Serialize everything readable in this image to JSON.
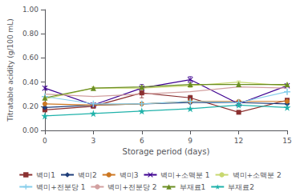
{
  "chart_data": {
    "type": "line",
    "xlabel": "Storage period (days)",
    "ylabel": "Titratable acidity (g/100 mL)",
    "x": [
      0,
      3,
      6,
      9,
      12,
      15
    ],
    "xlim": [
      0,
      15
    ],
    "xticks": [
      0,
      3,
      6,
      9,
      12,
      15
    ],
    "ylim": [
      0.0,
      1.0
    ],
    "yticks": [
      {
        "value": 0.0,
        "label": "0.00"
      },
      {
        "value": 0.2,
        "label": "0.20"
      },
      {
        "value": 0.4,
        "label": "0.40"
      },
      {
        "value": 0.6,
        "label": "0.60"
      },
      {
        "value": 0.8,
        "label": "0.80"
      },
      {
        "value": 1.0,
        "label": "1.00"
      }
    ],
    "grid": false,
    "legend": "bottom",
    "series": [
      {
        "name": "벽미1",
        "color": "#8B3030",
        "marker": "square",
        "line_style": "solid",
        "values": [
          0.17,
          0.2,
          0.31,
          0.27,
          0.15,
          0.25
        ],
        "yerr": [
          0.01,
          0.01,
          0.04,
          0.02,
          0.01,
          0.01
        ]
      },
      {
        "name": "벽미2",
        "color": "#1F3E7A",
        "marker": "diamond",
        "line_style": "solid",
        "values": [
          0.19,
          0.21,
          0.22,
          0.23,
          0.23,
          0.22
        ]
      },
      {
        "name": "벽미3",
        "color": "#CC7722",
        "marker": "circle",
        "line_style": "solid",
        "values": [
          0.22,
          0.21,
          0.22,
          0.24,
          0.24,
          0.24
        ]
      },
      {
        "name": "벽미+소맥분 1",
        "color": "#3D0090",
        "marker": "x",
        "line_style": "solid",
        "values": [
          0.35,
          0.21,
          0.35,
          0.42,
          0.22,
          0.37
        ],
        "yerr": [
          0.015,
          0.01,
          0.03,
          0.025,
          0.01,
          0.01
        ]
      },
      {
        "name": "벽미+소맥분 2",
        "color": "#C8D870",
        "marker": "none",
        "line_style": "solid",
        "values": [
          0.26,
          0.35,
          0.35,
          0.37,
          0.4,
          0.37
        ],
        "yerr": [
          0.01,
          0.01,
          0.02,
          0.015,
          0.01,
          0.01
        ]
      },
      {
        "name": "벽미+전분당 1",
        "color": "#87CEEB",
        "marker": "plus",
        "line_style": "solid",
        "values": [
          0.28,
          0.22,
          0.22,
          0.24,
          0.23,
          0.32
        ]
      },
      {
        "name": "벽미+전분당 2",
        "color": "#D2A0A0",
        "marker": "none",
        "line_style": "solid",
        "values": [
          0.3,
          0.28,
          0.3,
          0.32,
          0.36,
          0.35
        ]
      },
      {
        "name": "부재료1",
        "color": "#6B8E23",
        "marker": "triangle",
        "line_style": "solid",
        "values": [
          0.27,
          0.35,
          0.36,
          0.38,
          0.38,
          0.38
        ]
      },
      {
        "name": "부재료2",
        "color": "#20B2AA",
        "marker": "star",
        "line_style": "solid",
        "values": [
          0.12,
          0.14,
          0.16,
          0.18,
          0.21,
          0.19
        ]
      }
    ]
  }
}
